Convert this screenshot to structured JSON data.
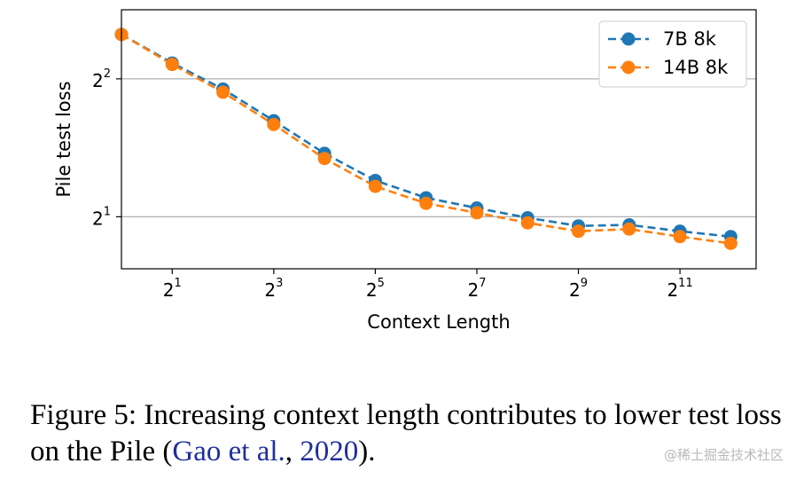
{
  "chart_data": {
    "type": "line",
    "xlabel": "Context Length",
    "ylabel": "Pile test loss",
    "x_scale": "log2",
    "y_scale": "log2",
    "xlim": [
      1,
      5792
    ],
    "ylim": [
      1.54,
      5.66
    ],
    "x": [
      1,
      2,
      4,
      8,
      16,
      32,
      64,
      128,
      256,
      512,
      1024,
      2048,
      4096
    ],
    "x_ticks": [
      {
        "base": "2",
        "exp": "1",
        "value": 2
      },
      {
        "base": "2",
        "exp": "3",
        "value": 8
      },
      {
        "base": "2",
        "exp": "5",
        "value": 32
      },
      {
        "base": "2",
        "exp": "7",
        "value": 128
      },
      {
        "base": "2",
        "exp": "9",
        "value": 512
      },
      {
        "base": "2",
        "exp": "11",
        "value": 2048
      }
    ],
    "y_ticks": [
      {
        "base": "2",
        "exp": "1",
        "value": 2
      },
      {
        "base": "2",
        "exp": "2",
        "value": 4
      }
    ],
    "grid": "horizontal at major y ticks",
    "legend_position": "top-right",
    "series": [
      {
        "name": "7B 8k",
        "color": "#1f77b4",
        "values": [
          5.0,
          4.33,
          3.8,
          3.24,
          2.75,
          2.4,
          2.2,
          2.09,
          1.99,
          1.91,
          1.92,
          1.86,
          1.81
        ]
      },
      {
        "name": "14B 8k",
        "color": "#ff7f0e",
        "values": [
          5.0,
          4.3,
          3.74,
          3.18,
          2.68,
          2.33,
          2.14,
          2.04,
          1.94,
          1.86,
          1.88,
          1.81,
          1.75
        ]
      }
    ]
  },
  "caption": {
    "text_before": "Figure 5: Increasing context length contributes to lower test loss on the Pile (",
    "citation_author": "Gao et al.",
    "citation_sep": ", ",
    "citation_year": "2020",
    "text_after": ")."
  },
  "watermark": "@稀土掘金技术社区"
}
